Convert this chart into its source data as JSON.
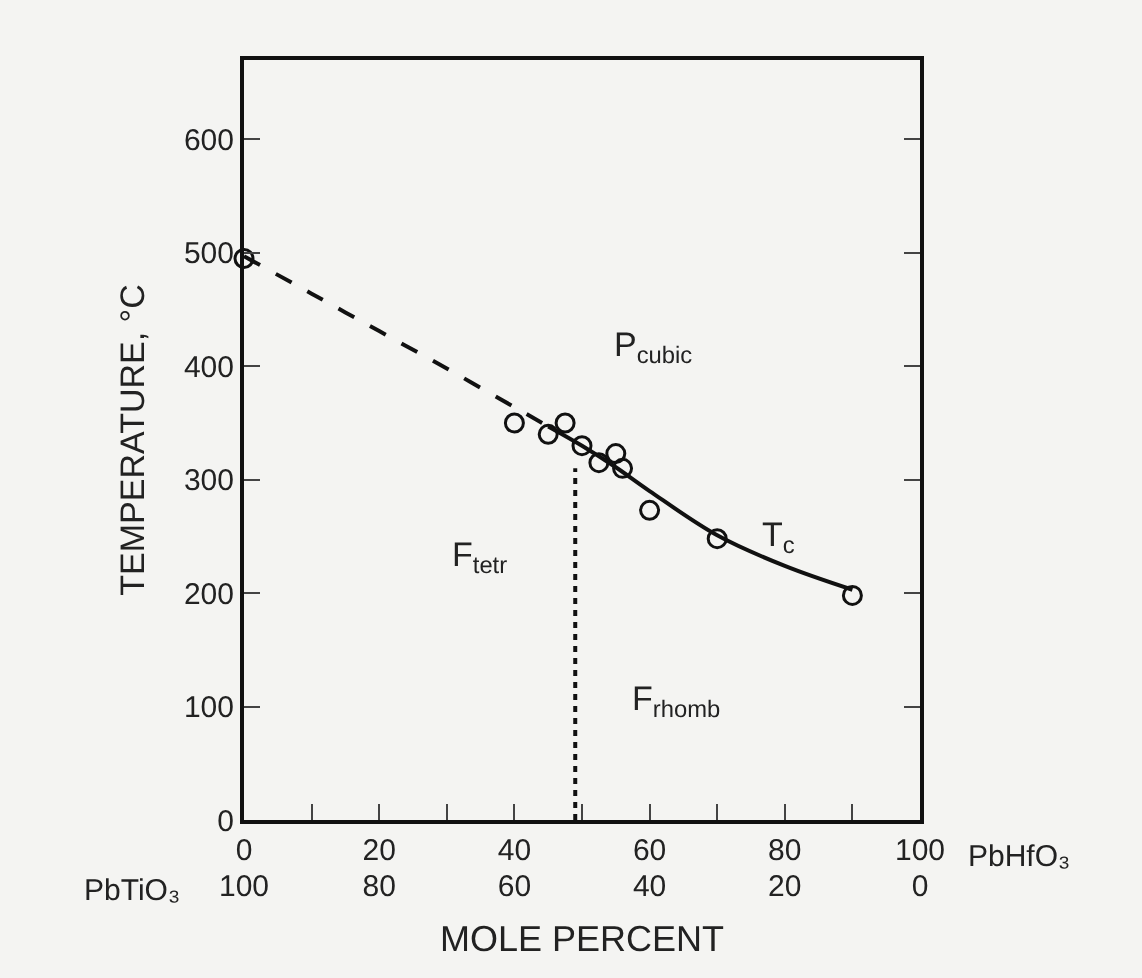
{
  "chart_data": {
    "type": "scatter",
    "ylabel": "TEMPERATURE, °C",
    "xlabel": "MOLE PERCENT",
    "x2label": "PbTiO₃",
    "xlim": [
      0,
      100
    ],
    "ylim": [
      0,
      670
    ],
    "xticks": [
      0,
      {
        "value": 10,
        "label": null
      },
      20,
      {
        "value": 30,
        "label": null
      },
      40,
      {
        "value": 50,
        "label": null
      },
      60,
      {
        "value": 70,
        "label": null
      },
      80,
      {
        "value": 90,
        "label": null
      },
      100
    ],
    "x2lim": [
      100,
      0
    ],
    "x2ticks": [
      100,
      80,
      60,
      40,
      20,
      0
    ],
    "yticks": [
      0,
      100,
      200,
      300,
      400,
      500,
      600
    ],
    "series": [
      {
        "marker": "circle",
        "color": "#111111",
        "x": [
          0,
          40,
          45,
          47.5,
          50,
          52.5,
          55,
          56,
          60,
          70,
          90
        ],
        "values": [
          495,
          350,
          340,
          350,
          330,
          315,
          323,
          310,
          273,
          248,
          198
        ]
      },
      {
        "type": "line",
        "line_style": "dashed",
        "marker": "none",
        "color": "#111111",
        "x": [
          0,
          10,
          20,
          30,
          40,
          45
        ],
        "values": [
          497,
          464,
          431,
          398,
          364,
          347
        ]
      },
      {
        "type": "line",
        "line_style": "solid",
        "marker": "none",
        "color": "#111111",
        "x": [
          45,
          50,
          55,
          60,
          70,
          80,
          90
        ],
        "values": [
          347,
          330,
          311,
          290,
          251,
          224,
          203
        ]
      },
      {
        "type": "line",
        "line_style": "dotted",
        "marker": "none",
        "color": "#111111",
        "x": [
          49,
          49
        ],
        "values": [
          0,
          310
        ]
      }
    ],
    "annotations": [
      "P$_{cubic}$",
      "F$_{tetr}$",
      "F$_{rhomb}$",
      "T$_{c}$",
      "PbHfO₃"
    ]
  }
}
